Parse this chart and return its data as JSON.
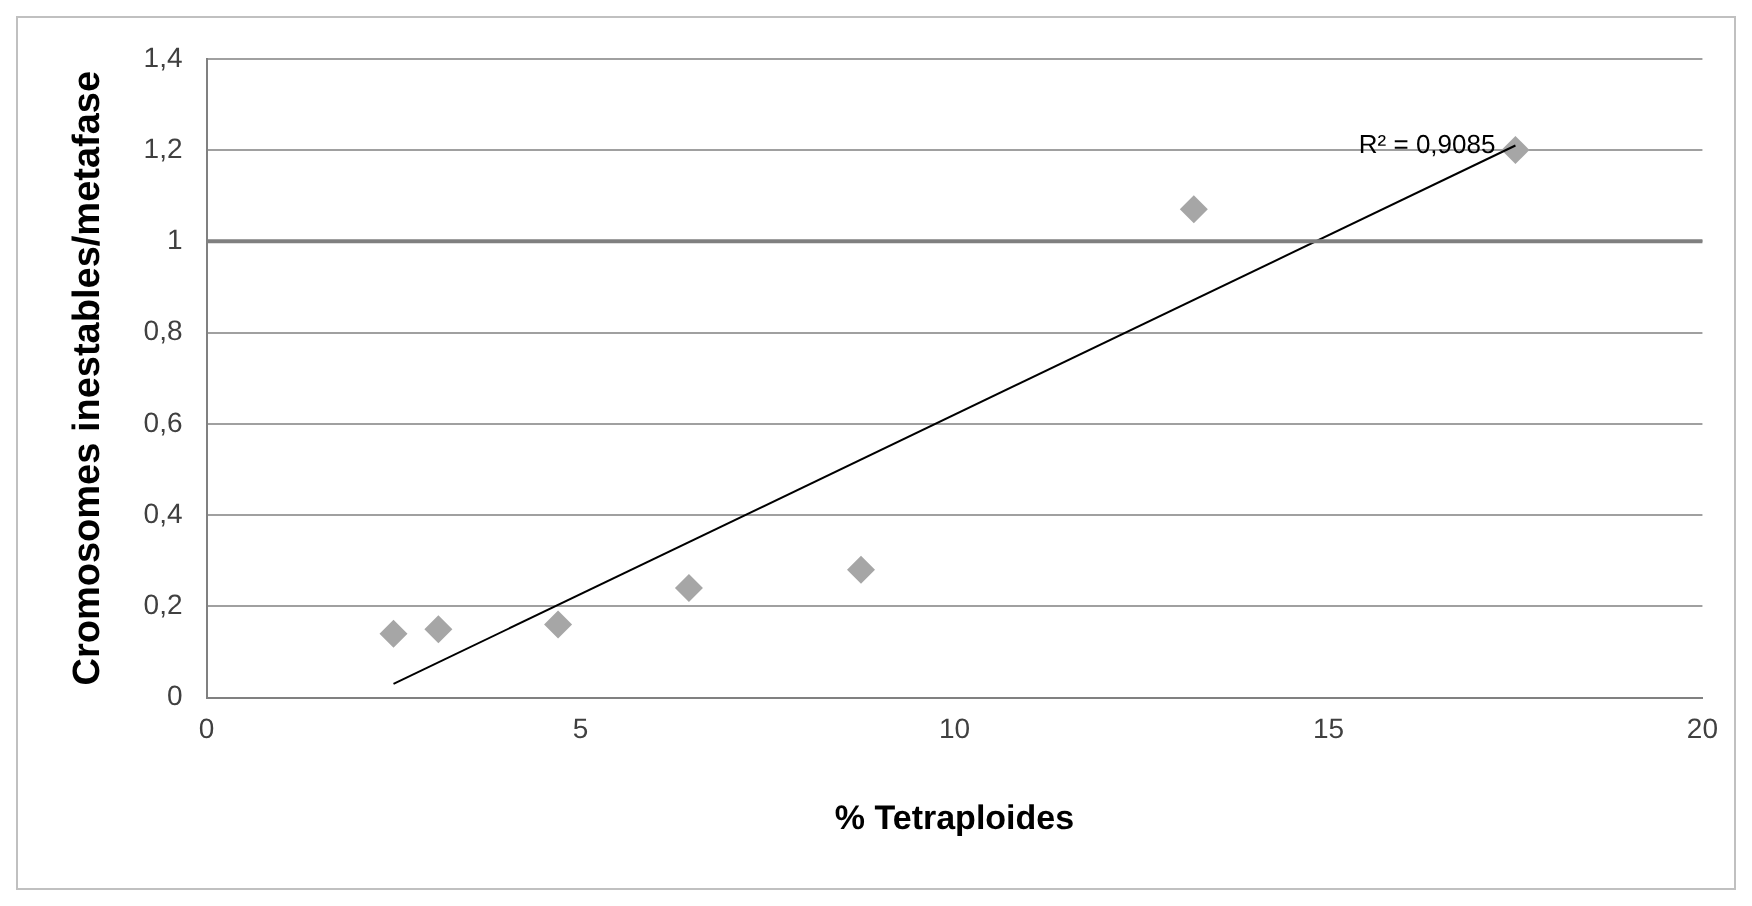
{
  "chart_data": {
    "type": "scatter",
    "xlabel": "% Tetraploides",
    "ylabel": "Cromosomes inestables/metafase",
    "x": [
      2.5,
      3.1,
      4.7,
      6.45,
      8.75,
      13.2,
      17.5
    ],
    "series": [
      {
        "color": "#a6a6a6",
        "marker": "diamond",
        "values": [
          0.14,
          0.15,
          0.16,
          0.24,
          0.28,
          1.07,
          1.2
        ]
      },
      {
        "type": "line",
        "marker": "none",
        "color": "#000000",
        "x": [
          2.5,
          17.5
        ],
        "values": [
          0.03,
          1.21
        ]
      }
    ],
    "xlim": [
      0,
      20
    ],
    "xticks": [
      0,
      5,
      10,
      15,
      20
    ],
    "ylim": [
      0,
      1.4
    ],
    "yticks": [
      0,
      {
        "value": 0.2,
        "label": "0,2"
      },
      {
        "value": 0.4,
        "label": "0,4"
      },
      {
        "value": 0.6,
        "label": "0,6"
      },
      {
        "value": 0.8,
        "label": "0,8"
      },
      1,
      {
        "value": 1.2,
        "label": "1,2"
      },
      {
        "value": 1.4,
        "label": "1,4"
      }
    ],
    "grid": "y",
    "legend": false,
    "ref_lines": [
      {
        "axis": "y",
        "value": 1,
        "color": "#808080"
      }
    ],
    "annotations": [
      {
        "text": "R² = 0,9085",
        "x": 17.5,
        "y": 1.21
      }
    ]
  }
}
